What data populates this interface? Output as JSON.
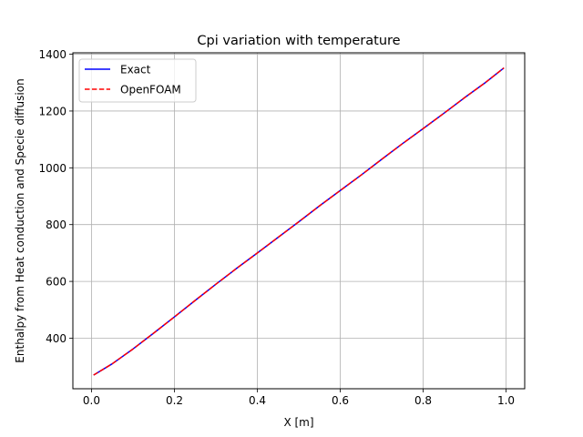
{
  "chart_data": {
    "type": "line",
    "title": "Cpi variation with temperature",
    "xlabel": "X [m]",
    "ylabel": "Enthalpy from Heat conduction and Specie diffusion",
    "xlim": [
      -0.045,
      1.045
    ],
    "ylim": [
      222,
      1405
    ],
    "xticks": [
      0.0,
      0.2,
      0.4,
      0.6,
      0.8,
      1.0
    ],
    "xtick_labels": [
      "0.0",
      "0.2",
      "0.4",
      "0.6",
      "0.8",
      "1.0"
    ],
    "yticks": [
      400,
      600,
      800,
      1000,
      1200,
      1400
    ],
    "ytick_labels": [
      "400",
      "600",
      "800",
      "1000",
      "1200",
      "1400"
    ],
    "grid": true,
    "legend_position": "top-left",
    "series": [
      {
        "name": "Exact",
        "color": "#0000ff",
        "style": "solid",
        "x": [
          0.005,
          0.05,
          0.1,
          0.15,
          0.2,
          0.25,
          0.3,
          0.35,
          0.4,
          0.45,
          0.5,
          0.55,
          0.6,
          0.65,
          0.7,
          0.75,
          0.8,
          0.85,
          0.9,
          0.95,
          0.995
        ],
        "y": [
          270,
          310,
          362,
          418,
          475,
          533,
          590,
          646,
          700,
          755,
          810,
          866,
          920,
          974,
          1030,
          1085,
          1138,
          1192,
          1247,
          1300,
          1352
        ]
      },
      {
        "name": "OpenFOAM",
        "color": "#ff0000",
        "style": "dashed",
        "x": [
          0.005,
          0.05,
          0.1,
          0.15,
          0.2,
          0.25,
          0.3,
          0.35,
          0.4,
          0.45,
          0.5,
          0.55,
          0.6,
          0.65,
          0.7,
          0.75,
          0.8,
          0.85,
          0.9,
          0.95,
          0.995
        ],
        "y": [
          270,
          310,
          362,
          418,
          475,
          533,
          590,
          646,
          700,
          755,
          810,
          866,
          920,
          974,
          1030,
          1085,
          1138,
          1192,
          1247,
          1300,
          1352
        ]
      }
    ]
  }
}
